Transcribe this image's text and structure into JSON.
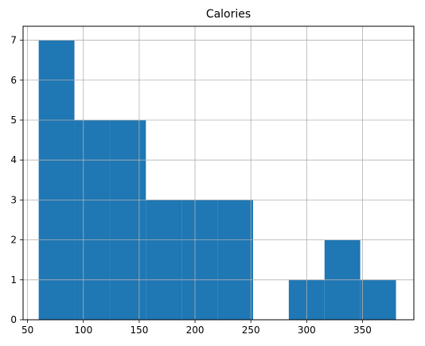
{
  "chart_data": {
    "type": "bar",
    "title": "Calories",
    "xlabel": "",
    "ylabel": "",
    "bins": [
      {
        "x0": 60,
        "x1": 92,
        "count": 7
      },
      {
        "x0": 92,
        "x1": 124,
        "count": 5
      },
      {
        "x0": 124,
        "x1": 156,
        "count": 5
      },
      {
        "x0": 156,
        "x1": 188,
        "count": 3
      },
      {
        "x0": 188,
        "x1": 220,
        "count": 3
      },
      {
        "x0": 220,
        "x1": 252,
        "count": 3
      },
      {
        "x0": 252,
        "x1": 284,
        "count": 0
      },
      {
        "x0": 284,
        "x1": 316,
        "count": 1
      },
      {
        "x0": 316,
        "x1": 348,
        "count": 2
      },
      {
        "x0": 348,
        "x1": 380,
        "count": 1
      }
    ],
    "xlim": [
      46,
      396
    ],
    "ylim": [
      0,
      7.35
    ],
    "xticks": [
      50,
      100,
      150,
      200,
      250,
      300,
      350
    ],
    "yticks": [
      0,
      1,
      2,
      3,
      4,
      5,
      6,
      7
    ],
    "grid": true,
    "bar_color": "#1f77b4",
    "grid_color": "#b0b0b0"
  }
}
